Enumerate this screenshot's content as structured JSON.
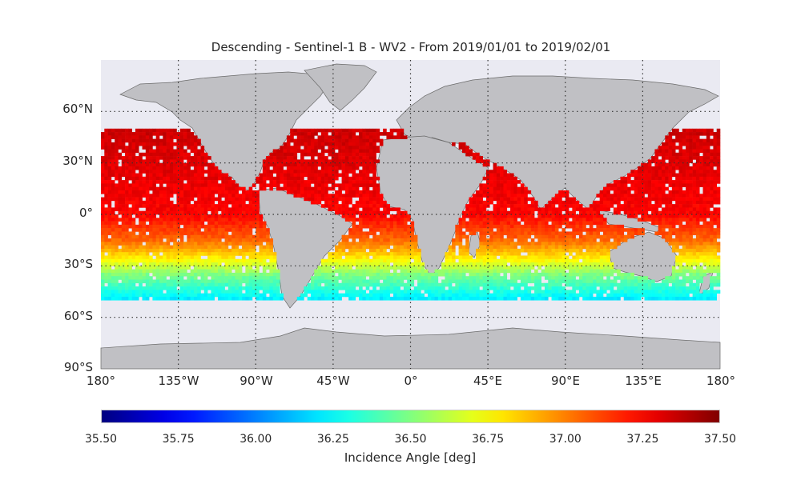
{
  "title": "Descending - Sentinel-1 B - WV2 - From 2019/01/01 to 2019/02/01",
  "map": {
    "projection": "plate-carree",
    "background_color": "#eaeaf2",
    "land_color": "#c0c0c4",
    "lat_labels": [
      "60°N",
      "30°N",
      "0°",
      "30°S",
      "60°S",
      "90°S"
    ],
    "lon_labels": [
      "180°",
      "135°W",
      "90°W",
      "45°W",
      "0°",
      "45°E",
      "90°E",
      "135°E",
      "180°"
    ]
  },
  "chart_data": {
    "type": "heatmap",
    "title": "Descending - Sentinel-1 B - WV2 - From 2019/01/01 to 2019/02/01",
    "variable": "Incidence Angle [deg]",
    "colormap": "jet",
    "vmin": 35.5,
    "vmax": 37.5,
    "lat_range": [
      -90,
      90
    ],
    "lon_range": [
      -180,
      180
    ],
    "data_lat_range": [
      -50,
      50
    ],
    "gridlines": "dotted",
    "trend": [
      {
        "lat": 50,
        "value": 37.35
      },
      {
        "lat": 0,
        "value": 37.25
      },
      {
        "lat": -15,
        "value": 37.05
      },
      {
        "lat": -25,
        "value": 36.8
      },
      {
        "lat": -35,
        "value": 36.5
      },
      {
        "lat": -45,
        "value": 36.3
      },
      {
        "lat": -50,
        "value": 36.2
      }
    ]
  },
  "colorbar": {
    "ticks": [
      "35.50",
      "35.75",
      "36.00",
      "36.25",
      "36.50",
      "36.75",
      "37.00",
      "37.25",
      "37.50"
    ],
    "label": "Incidence Angle [deg]"
  }
}
